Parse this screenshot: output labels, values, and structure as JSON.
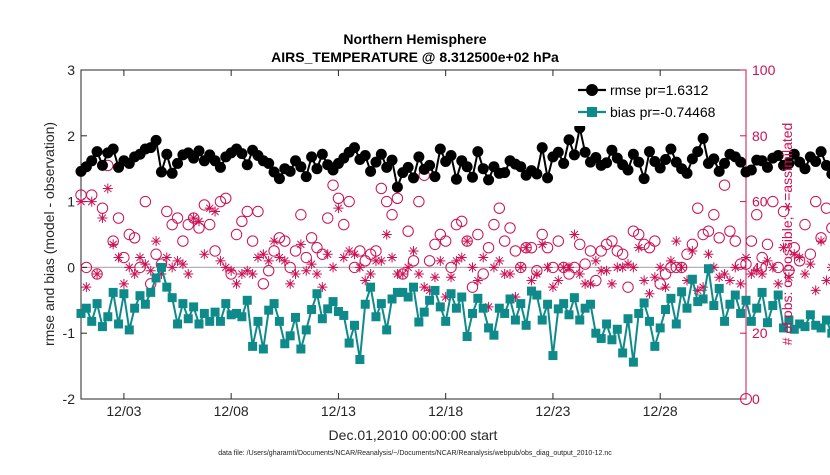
{
  "chart_data": {
    "type": "line",
    "title": "Northern Hemisphere",
    "subtitle": "AIRS_TEMPERATURE @ 8.312500e+02 hPa",
    "xlabel": "Dec.01,2010 00:00:00 start",
    "ylabel_left": "rmse and bias (model - observation)",
    "ylabel_right": "# of obs: o=possible; ∗=assimilated",
    "xlim": [
      1.0,
      32.0
    ],
    "ylim_left": [
      -2,
      3
    ],
    "ylim_right": [
      0,
      100
    ],
    "x_ticks": [
      3,
      8,
      13,
      18,
      23,
      28
    ],
    "x_tick_labels": [
      "12/03",
      "12/08",
      "12/13",
      "12/18",
      "12/23",
      "12/28"
    ],
    "y_ticks_left": [
      -2,
      -1,
      0,
      1,
      2,
      3
    ],
    "y_tick_labels_left": [
      "-2",
      "-1",
      "0",
      "1",
      "2",
      "3"
    ],
    "y_ticks_right": [
      0,
      20,
      40,
      60,
      80,
      100
    ],
    "y_tick_labels_right": [
      "0",
      "20",
      "40",
      "60",
      "80",
      "100"
    ],
    "zero_line": 0,
    "x_start": 1.0,
    "x_step": 0.25,
    "series": [
      {
        "name": "rmse",
        "legend": "rmse pr=1.6312",
        "color": "#000000",
        "axis": "left",
        "marker": "circle",
        "values": [
          1.46,
          1.53,
          1.62,
          1.76,
          1.55,
          1.74,
          1.8,
          1.52,
          1.62,
          1.58,
          1.68,
          1.72,
          1.8,
          1.82,
          1.93,
          1.45,
          1.72,
          1.43,
          1.58,
          1.71,
          1.74,
          1.66,
          1.77,
          1.62,
          1.71,
          1.62,
          1.52,
          1.68,
          1.74,
          1.8,
          1.73,
          1.56,
          1.78,
          1.7,
          1.62,
          1.58,
          1.45,
          1.35,
          1.5,
          1.46,
          1.62,
          1.53,
          1.38,
          1.68,
          1.5,
          1.72,
          1.56,
          1.48,
          1.58,
          1.66,
          1.75,
          1.82,
          1.64,
          1.7,
          1.46,
          1.6,
          1.72,
          1.52,
          1.63,
          1.22,
          1.44,
          1.52,
          1.36,
          1.68,
          1.49,
          1.55,
          1.38,
          1.8,
          1.61,
          1.7,
          1.34,
          1.62,
          1.53,
          1.37,
          1.76,
          1.5,
          1.33,
          1.53,
          1.43,
          1.44,
          1.62,
          1.57,
          1.53,
          1.4,
          1.47,
          1.42,
          1.82,
          1.36,
          1.68,
          1.75,
          1.58,
          1.94,
          1.71,
          2.12,
          1.75,
          1.6,
          1.67,
          1.55,
          1.59,
          1.78,
          1.66,
          1.56,
          1.48,
          1.72,
          1.6,
          1.35,
          1.76,
          1.61,
          1.51,
          1.64,
          1.8,
          1.6,
          1.5,
          1.43,
          1.65,
          1.76,
          1.96,
          1.58,
          1.65,
          1.46,
          1.58,
          1.72,
          1.68,
          1.6,
          1.45,
          1.48,
          1.63,
          1.62,
          1.52,
          1.66,
          1.7,
          1.55,
          1.58,
          1.72,
          1.6,
          1.5,
          1.68,
          1.61,
          1.76,
          1.55,
          1.42,
          2.12,
          1.61,
          2.05,
          1.77,
          1.63,
          1.93,
          1.38,
          1.48,
          1.75,
          1.61,
          1.52,
          1.58,
          1.68,
          1.33,
          1.52,
          1.6,
          1.22,
          1.82,
          1.4,
          1.26,
          1.66,
          1.82,
          1.52,
          1.82
        ]
      },
      {
        "name": "bias",
        "legend": "bias pr=-0.74468",
        "color": "#0f8a8a",
        "axis": "left",
        "marker": "square",
        "values": [
          -0.7,
          -0.62,
          -0.82,
          -0.55,
          -0.9,
          -0.75,
          -0.38,
          -0.86,
          -0.4,
          -0.95,
          -0.62,
          -0.43,
          -0.56,
          -0.38,
          -0.16,
          0.0,
          -0.3,
          -0.46,
          -0.86,
          -0.55,
          -0.78,
          -0.6,
          -0.86,
          -0.7,
          -0.82,
          -0.68,
          -0.82,
          -0.55,
          -0.72,
          -0.7,
          -0.75,
          -0.5,
          -1.2,
          -0.82,
          -1.24,
          -0.65,
          -0.55,
          -0.82,
          -1.16,
          -1.04,
          -0.76,
          -1.24,
          -0.95,
          -0.64,
          -0.4,
          -0.78,
          -0.63,
          -0.52,
          -0.67,
          -0.73,
          -1.15,
          -0.88,
          -1.4,
          -0.56,
          -0.3,
          -0.75,
          -0.55,
          -0.95,
          -0.48,
          -0.38,
          -0.38,
          -0.45,
          -0.3,
          -0.83,
          -0.68,
          -0.5,
          -0.35,
          -0.6,
          -0.82,
          -0.4,
          -0.62,
          -0.45,
          -1.05,
          -0.7,
          -0.47,
          -0.62,
          -0.92,
          -1.03,
          -0.62,
          -0.7,
          -0.48,
          -0.8,
          -0.55,
          -0.88,
          -0.36,
          -0.42,
          -0.8,
          -0.56,
          -1.34,
          -0.63,
          -0.55,
          -0.72,
          -0.46,
          -0.8,
          -0.62,
          -0.56,
          -1.0,
          -1.08,
          -0.86,
          -1.1,
          -0.94,
          -1.3,
          -0.78,
          -1.44,
          -0.7,
          -0.54,
          -0.82,
          -1.2,
          -0.92,
          -0.64,
          -0.47,
          -0.86,
          -0.37,
          -0.62,
          -0.18,
          -0.52,
          -0.48,
          -0.02,
          -0.58,
          -0.32,
          -0.82,
          -0.56,
          -0.42,
          -0.7,
          -0.5,
          -0.82,
          -0.62,
          -0.38,
          -0.84,
          -0.58,
          -0.42,
          -0.92,
          -0.8,
          -0.94,
          -0.86,
          -0.9,
          -0.72,
          -0.88,
          -0.92,
          -0.8,
          -1.0,
          -0.64,
          -0.84,
          -0.68,
          -0.75,
          -0.88,
          -0.7,
          -0.8,
          -0.68,
          -0.83,
          -0.98,
          -0.76,
          -0.95,
          -0.48,
          -0.65,
          -1.1,
          -0.4,
          -0.6,
          -0.46,
          -0.8,
          -0.42,
          -1.02,
          -0.86,
          -0.8,
          -0.7,
          -1.16
        ]
      },
      {
        "name": "possible",
        "legend": "",
        "color": "#cc1155",
        "axis": "right",
        "marker": "open-circle",
        "values": [
          62,
          40,
          62,
          38,
          58,
          71,
          48,
          55,
          43,
          50,
          49,
          40,
          60,
          35,
          44,
          41,
          57,
          53,
          55,
          48,
          53,
          55,
          52,
          59,
          53,
          45,
          60,
          61,
          38,
          50,
          54,
          57,
          48,
          57,
          35,
          39,
          45,
          49,
          48,
          40,
          45,
          56,
          43,
          49,
          46,
          44,
          55,
          65,
          61,
          53,
          60,
          40,
          45,
          42,
          44,
          45,
          64,
          60,
          56,
          61,
          38,
          51,
          42,
          60,
          68,
          42,
          47,
          50,
          48,
          40,
          53,
          54,
          48,
          34,
          50,
          38,
          46,
          53,
          58,
          48,
          52,
          45,
          40,
          46,
          46,
          39,
          50,
          46,
          40,
          48,
          40,
          38,
          40,
          47,
          41,
          45,
          36,
          45,
          47,
          48,
          45,
          44,
          34,
          51,
          50,
          47,
          46,
          48,
          35,
          38,
          40,
          40,
          40,
          44,
          47,
          58,
          50,
          51,
          56,
          49,
          65,
          51,
          48,
          41,
          41,
          48,
          56,
          43,
          47,
          60,
          40,
          57,
          39,
          46,
          42,
          53,
          44,
          60,
          49,
          58,
          52,
          55,
          51,
          44,
          48,
          61,
          42,
          42,
          52,
          46,
          36,
          50,
          43,
          63,
          48,
          42,
          58,
          54,
          42,
          44,
          39,
          42,
          46,
          48,
          38,
          62,
          46,
          35
        ]
      },
      {
        "name": "assimilated",
        "legend": "",
        "color": "#cc1155",
        "axis": "right",
        "marker": "star",
        "values": [
          60,
          34,
          60,
          38,
          55,
          64,
          47,
          43,
          35,
          40,
          38,
          43,
          41,
          39,
          48,
          38,
          43,
          40,
          42,
          41,
          38,
          55,
          54,
          44,
          58,
          57,
          42,
          40,
          39,
          35,
          38,
          39,
          38,
          43,
          44,
          42,
          48,
          43,
          42,
          35,
          38,
          47,
          39,
          41,
          38,
          34,
          44,
          40,
          58,
          43,
          45,
          44,
          40,
          36,
          38,
          42,
          42,
          50,
          43,
          38,
          38,
          40,
          45,
          38,
          34,
          33,
          37,
          42,
          31,
          37,
          42,
          43,
          48,
          40,
          36,
          43,
          28,
          40,
          42,
          38,
          38,
          31,
          40,
          46,
          36,
          38,
          47,
          40,
          34,
          36,
          40,
          40,
          50,
          38,
          35,
          35,
          42,
          39,
          39,
          35,
          40,
          40,
          41,
          40,
          46,
          36,
          32,
          37,
          40,
          34,
          42,
          48,
          40,
          36,
          45,
          33,
          34,
          44,
          40,
          37,
          38,
          36,
          40,
          35,
          43,
          38,
          39,
          38,
          42,
          40,
          35,
          46,
          37,
          44,
          43,
          38,
          41,
          33,
          48,
          36,
          40,
          38,
          37,
          37,
          40,
          38,
          36,
          36,
          42,
          36,
          37,
          34,
          41,
          36,
          38,
          40,
          38,
          34,
          42,
          44,
          40,
          40,
          39,
          40,
          38,
          40,
          39,
          35
        ]
      }
    ],
    "legend_location": "top-right"
  },
  "footer": "data file: /Users/gharamti/Documents/NCAR/Reanalysis/~/Documents/NCAR/Reanalysis/webpub/obs_diag_output_2010-12.nc",
  "colors": {
    "rmse": "#000000",
    "bias": "#0f8a8a",
    "obs": "#cc1155",
    "zero_line": "#b3b3b3"
  }
}
